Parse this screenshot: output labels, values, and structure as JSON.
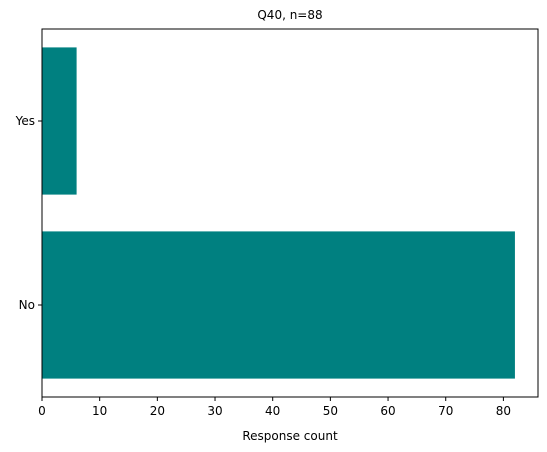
{
  "chart_data": {
    "type": "bar",
    "orientation": "horizontal",
    "title": "Q40, n=88",
    "xlabel": "Response count",
    "ylabel": "",
    "categories": [
      "Yes",
      "No"
    ],
    "values": [
      6,
      82
    ],
    "xlim": [
      0,
      86
    ],
    "x_ticks": [
      0,
      10,
      20,
      30,
      40,
      50,
      60,
      70,
      80
    ],
    "bar_color": "#008080",
    "grid": false,
    "legend": "none"
  }
}
